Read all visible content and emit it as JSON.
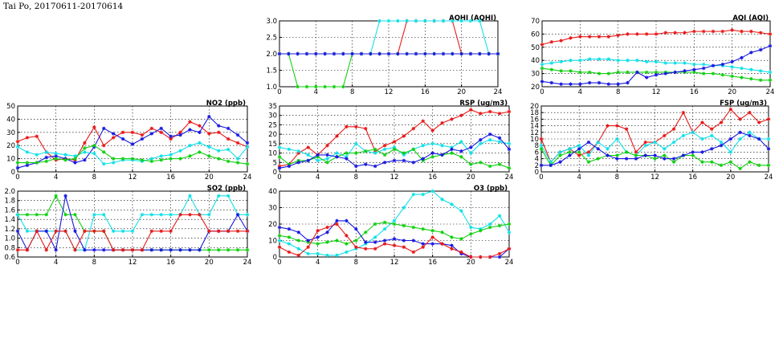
{
  "page": {
    "title": "Tai Po, 20170611-20170614"
  },
  "colors": {
    "red": "#e81818",
    "blue": "#1818e0",
    "cyan": "#10e0e8",
    "green": "#10d010"
  },
  "chart_data": [
    {
      "id": "aqhi",
      "type": "line",
      "title": "AQHI (AQHI)",
      "xlim": [
        0,
        24
      ],
      "xticks": [
        0,
        4,
        8,
        12,
        16,
        20,
        24
      ],
      "ylim": [
        1,
        3
      ],
      "yticks": [
        1.0,
        1.5,
        2.0,
        2.5,
        3.0
      ],
      "ydecimals": 1,
      "grid": true,
      "series": [
        {
          "color": "red",
          "values": [
            2,
            2,
            2,
            2,
            2,
            2,
            2,
            2,
            2,
            2,
            2,
            2,
            2,
            2,
            3,
            3,
            3,
            3,
            3,
            3,
            2,
            2,
            2,
            2,
            2
          ]
        },
        {
          "color": "cyan",
          "values": [
            2,
            2,
            2,
            2,
            2,
            2,
            2,
            2,
            2,
            2,
            2,
            3,
            3,
            3,
            3,
            3,
            3,
            3,
            3,
            3,
            3,
            3,
            3,
            2,
            2
          ]
        },
        {
          "color": "green",
          "values": [
            2,
            2,
            1,
            1,
            1,
            1,
            1,
            1,
            2,
            2,
            2,
            2,
            2,
            2,
            2,
            2,
            2,
            2,
            2,
            2,
            2,
            2,
            2,
            2,
            2
          ]
        },
        {
          "color": "blue",
          "values": [
            2,
            2,
            2,
            2,
            2,
            2,
            2,
            2,
            2,
            2,
            2,
            2,
            2,
            2,
            2,
            2,
            2,
            2,
            2,
            2,
            2,
            2,
            2,
            2,
            2
          ]
        }
      ]
    },
    {
      "id": "aqi",
      "type": "line",
      "title": "AQI (AQI)",
      "xlim": [
        0,
        24
      ],
      "xticks": [
        0,
        4,
        8,
        12,
        16,
        20,
        24
      ],
      "ylim": [
        20,
        70
      ],
      "yticks": [
        20,
        30,
        40,
        50,
        60,
        70
      ],
      "ydecimals": 0,
      "grid": true,
      "series": [
        {
          "color": "red",
          "values": [
            52,
            54,
            55,
            57,
            58,
            58,
            58,
            58,
            59,
            60,
            60,
            60,
            60,
            61,
            61,
            61,
            62,
            62,
            62,
            62,
            63,
            62,
            62,
            61,
            60
          ]
        },
        {
          "color": "cyan",
          "values": [
            37,
            38,
            39,
            40,
            40,
            41,
            41,
            41,
            40,
            40,
            40,
            39,
            39,
            38,
            38,
            38,
            37,
            37,
            36,
            36,
            35,
            34,
            33,
            32,
            31
          ]
        },
        {
          "color": "green",
          "values": [
            34,
            33,
            32,
            32,
            31,
            31,
            30,
            30,
            31,
            31,
            31,
            31,
            31,
            31,
            31,
            31,
            31,
            30,
            30,
            29,
            28,
            27,
            26,
            25,
            25
          ]
        },
        {
          "color": "blue",
          "values": [
            24,
            23,
            22,
            22,
            22,
            23,
            23,
            22,
            22,
            23,
            31,
            27,
            29,
            30,
            31,
            32,
            33,
            34,
            36,
            37,
            39,
            42,
            46,
            48,
            51
          ]
        }
      ]
    },
    {
      "id": "no2",
      "type": "line",
      "title": "NO2 (ppb)",
      "xlim": [
        0,
        24
      ],
      "xticks": [
        0,
        4,
        8,
        12,
        16,
        20,
        24
      ],
      "ylim": [
        0,
        50
      ],
      "yticks": [
        0,
        10,
        20,
        30,
        40,
        50
      ],
      "ydecimals": 0,
      "grid": true,
      "series": [
        {
          "color": "red",
          "values": [
            23,
            26,
            27,
            15,
            9,
            10,
            9,
            22,
            34,
            20,
            26,
            30,
            30,
            28,
            33,
            30,
            25,
            30,
            38,
            35,
            29,
            30,
            25,
            22,
            19
          ]
        },
        {
          "color": "blue",
          "values": [
            3,
            5,
            7,
            11,
            12,
            10,
            7,
            9,
            19,
            33,
            29,
            25,
            21,
            25,
            29,
            33,
            27,
            28,
            32,
            30,
            42,
            35,
            33,
            28,
            22
          ]
        },
        {
          "color": "cyan",
          "values": [
            19,
            15,
            13,
            15,
            14,
            13,
            12,
            15,
            14,
            6,
            7,
            9,
            9,
            8,
            10,
            12,
            13,
            16,
            20,
            22,
            19,
            16,
            17,
            10,
            19
          ]
        },
        {
          "color": "green",
          "values": [
            7,
            7,
            7,
            8,
            10,
            9,
            10,
            18,
            20,
            15,
            10,
            10,
            10,
            9,
            8,
            9,
            10,
            10,
            12,
            15,
            12,
            10,
            8,
            7,
            6
          ]
        }
      ]
    },
    {
      "id": "rsp",
      "type": "line",
      "title": "RSP (ug/m3)",
      "xlim": [
        0,
        24
      ],
      "xticks": [
        0,
        4,
        8,
        12,
        16,
        20,
        24
      ],
      "ylim": [
        0,
        35
      ],
      "yticks": [
        0,
        5,
        10,
        15,
        20,
        25,
        30,
        35
      ],
      "ydecimals": 0,
      "grid": true,
      "series": [
        {
          "color": "red",
          "values": [
            3,
            4,
            10,
            13,
            9,
            14,
            19,
            24,
            24,
            23,
            11,
            14,
            16,
            19,
            23,
            27,
            22,
            26,
            28,
            30,
            33,
            31,
            32,
            31,
            32
          ]
        },
        {
          "color": "cyan",
          "values": [
            13,
            12,
            11,
            9,
            6,
            7,
            10,
            8,
            15,
            11,
            10,
            12,
            13,
            9,
            12,
            14,
            15,
            14,
            13,
            16,
            10,
            15,
            17,
            16,
            15
          ]
        },
        {
          "color": "green",
          "values": [
            8,
            4,
            6,
            6,
            8,
            5,
            8,
            10,
            10,
            11,
            12,
            9,
            12,
            10,
            12,
            6,
            8,
            9,
            10,
            8,
            4,
            5,
            3,
            4,
            2
          ]
        },
        {
          "color": "blue",
          "values": [
            2,
            3,
            5,
            6,
            9,
            9,
            8,
            7,
            3,
            4,
            3,
            5,
            6,
            6,
            5,
            7,
            10,
            9,
            12,
            11,
            13,
            17,
            20,
            18,
            12
          ]
        }
      ]
    },
    {
      "id": "fsp",
      "type": "line",
      "title": "FSP (ug/m3)",
      "xlim": [
        0,
        24
      ],
      "xticks": [
        0,
        4,
        8,
        12,
        16,
        20,
        24
      ],
      "ylim": [
        0,
        20
      ],
      "yticks": [
        0,
        2,
        4,
        6,
        8,
        10,
        12,
        14,
        16,
        18,
        20
      ],
      "ydecimals": 0,
      "grid": true,
      "series": [
        {
          "color": "red",
          "values": [
            10,
            3,
            6,
            7,
            5,
            6,
            9,
            14,
            14,
            13,
            6,
            9,
            9,
            11,
            13,
            18,
            12,
            15,
            13,
            15,
            19,
            16,
            18,
            15,
            16
          ]
        },
        {
          "color": "cyan",
          "values": [
            8,
            3,
            6,
            7,
            8,
            5,
            9,
            7,
            10,
            6,
            5,
            8,
            9,
            7,
            9,
            11,
            12,
            10,
            11,
            9,
            6,
            10,
            12,
            10,
            10
          ]
        },
        {
          "color": "green",
          "values": [
            7,
            2,
            5,
            6,
            6,
            3,
            4,
            5,
            5,
            6,
            5,
            5,
            4,
            5,
            3,
            5,
            5,
            3,
            3,
            2,
            3,
            1,
            3,
            2,
            2
          ]
        },
        {
          "color": "blue",
          "values": [
            2,
            2,
            3,
            5,
            7,
            9,
            7,
            5,
            4,
            4,
            4,
            5,
            5,
            4,
            4,
            5,
            6,
            6,
            7,
            8,
            10,
            12,
            11,
            10,
            7
          ]
        }
      ]
    },
    {
      "id": "so2",
      "type": "line",
      "title": "SO2 (ppb)",
      "xlim": [
        0,
        24
      ],
      "xticks": [
        0,
        4,
        8,
        12,
        16,
        20,
        24
      ],
      "ylim": [
        0.6,
        2.0
      ],
      "yticks": [
        0.6,
        0.8,
        1.0,
        1.2,
        1.4,
        1.6,
        1.8,
        2.0
      ],
      "ydecimals": 1,
      "grid": true,
      "series": [
        {
          "color": "green",
          "values": [
            1.5,
            1.5,
            1.5,
            1.5,
            1.9,
            1.5,
            1.5,
            1.15,
            1.15,
            1.15,
            0.75,
            0.75,
            0.75,
            0.75,
            0.75,
            0.75,
            0.75,
            0.75,
            0.75,
            0.75,
            0.75,
            0.75,
            0.75,
            0.75,
            0.75
          ]
        },
        {
          "color": "cyan",
          "values": [
            1.5,
            1.15,
            1.15,
            1.15,
            1.15,
            1.15,
            0.75,
            0.75,
            1.5,
            1.5,
            1.15,
            1.15,
            1.15,
            1.5,
            1.5,
            1.5,
            1.5,
            1.5,
            1.9,
            1.5,
            1.5,
            1.9,
            1.9,
            1.5,
            1.5
          ]
        },
        {
          "color": "blue",
          "values": [
            1.15,
            0.75,
            1.15,
            1.15,
            0.75,
            1.9,
            1.15,
            0.75,
            0.75,
            0.75,
            0.75,
            0.75,
            0.75,
            0.75,
            0.75,
            0.75,
            0.75,
            0.75,
            0.75,
            0.75,
            1.15,
            1.15,
            1.15,
            1.5,
            1.15
          ]
        },
        {
          "color": "red",
          "values": [
            0.75,
            0.75,
            1.15,
            0.75,
            1.15,
            1.15,
            0.75,
            1.15,
            1.15,
            1.15,
            0.75,
            0.75,
            0.75,
            0.75,
            1.15,
            1.15,
            1.15,
            1.5,
            1.5,
            1.5,
            1.15,
            1.15,
            1.15,
            1.15,
            1.15
          ]
        }
      ]
    },
    {
      "id": "o3",
      "type": "line",
      "title": "O3 (ppb)",
      "xlim": [
        0,
        24
      ],
      "xticks": [
        0,
        4,
        8,
        12,
        16,
        20,
        24
      ],
      "ylim": [
        0,
        40
      ],
      "yticks": [
        0,
        10,
        20,
        30,
        40
      ],
      "ydecimals": 0,
      "grid": true,
      "series": [
        {
          "color": "cyan",
          "values": [
            10,
            8,
            5,
            2,
            2,
            1,
            1,
            3,
            5,
            8,
            12,
            17,
            22,
            30,
            38,
            38,
            40,
            35,
            32,
            28,
            18,
            17,
            20,
            25,
            15
          ]
        },
        {
          "color": "green",
          "values": [
            13,
            12,
            10,
            9,
            8,
            9,
            10,
            8,
            10,
            15,
            20,
            21,
            20,
            19,
            18,
            17,
            16,
            15,
            12,
            11,
            14,
            16,
            18,
            19,
            20
          ]
        },
        {
          "color": "blue",
          "values": [
            18,
            17,
            15,
            10,
            12,
            15,
            22,
            22,
            17,
            9,
            9,
            10,
            11,
            10,
            10,
            8,
            8,
            8,
            7,
            2,
            0,
            0,
            0,
            0,
            5
          ]
        },
        {
          "color": "red",
          "values": [
            6,
            3,
            1,
            6,
            16,
            18,
            20,
            13,
            6,
            5,
            5,
            8,
            7,
            6,
            3,
            6,
            12,
            8,
            5,
            3,
            0,
            0,
            0,
            2,
            5
          ]
        }
      ]
    }
  ]
}
